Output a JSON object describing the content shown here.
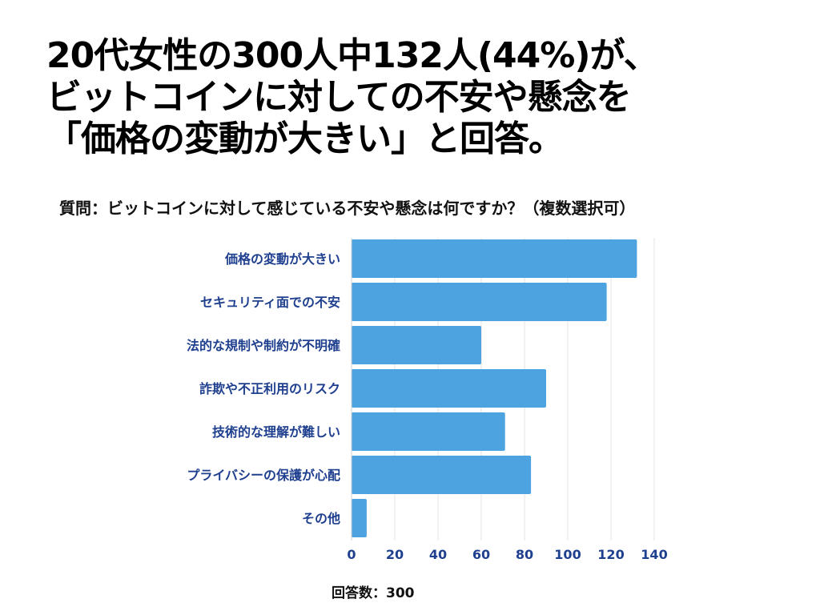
{
  "headline": {
    "line1": "20代女性の300人中132人(44%)が、",
    "line2": "ビットコインに対しての不安や懸念を",
    "line3": "「価格の変動が大きい」と回答。"
  },
  "question": "質問：ビットコインに対して感じている不安や懸念は何ですか？（複数選択可）",
  "footnote": "回答数：300",
  "colors": {
    "bar": "#4da3e0",
    "axis_label": "#1f3f8f",
    "grid": "#e3e3e3"
  },
  "chart_data": {
    "type": "bar",
    "orientation": "horizontal",
    "categories": [
      "価格の変動が大きい",
      "セキュリティ面での不安",
      "法的な規制や制約が不明確",
      "詐欺や不正利用のリスク",
      "技術的な理解が難しい",
      "プライバシーの保護が心配",
      "その他"
    ],
    "values": [
      132,
      118,
      60,
      90,
      71,
      83,
      7
    ],
    "xlim": [
      0,
      140
    ],
    "xticks": [
      "0",
      "20",
      "40",
      "60",
      "80",
      "100",
      "120",
      "140"
    ],
    "grid": true
  }
}
